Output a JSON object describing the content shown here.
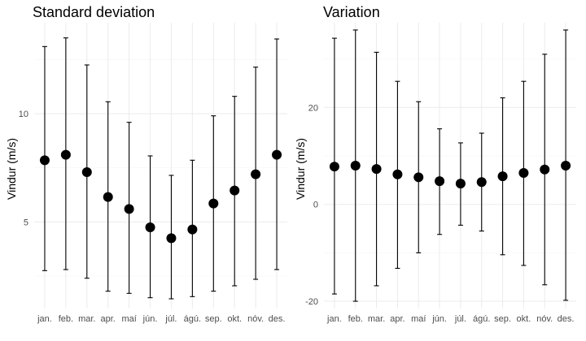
{
  "chart_data": [
    {
      "type": "scatter",
      "title": "Standard deviation",
      "xlabel": "",
      "ylabel": "Vindur (m/s)",
      "categories": [
        "jan.",
        "feb.",
        "mar.",
        "apr.",
        "maí",
        "jún.",
        "júl.",
        "ágú.",
        "sep.",
        "okt.",
        "nóv.",
        "des."
      ],
      "values": [
        7.85,
        8.1,
        7.3,
        6.15,
        5.6,
        4.75,
        4.25,
        4.65,
        5.85,
        6.45,
        7.2,
        8.1
      ],
      "lower": [
        2.75,
        2.8,
        2.4,
        1.8,
        1.7,
        1.5,
        1.45,
        1.55,
        1.8,
        2.05,
        2.35,
        2.8
      ],
      "upper": [
        13.1,
        13.5,
        12.25,
        10.55,
        9.6,
        8.05,
        7.15,
        7.85,
        9.9,
        10.8,
        12.15,
        13.45
      ],
      "ylim": [
        1.0,
        14.2
      ],
      "yticks": [
        5,
        10
      ],
      "grid": true
    },
    {
      "type": "scatter",
      "title": "Variation",
      "xlabel": "",
      "ylabel": "Vindur (m/s)",
      "categories": [
        "jan.",
        "feb.",
        "mar.",
        "apr.",
        "maí",
        "jún.",
        "júl.",
        "ágú.",
        "sep.",
        "okt.",
        "nóv.",
        "des."
      ],
      "values": [
        7.8,
        8.0,
        7.3,
        6.2,
        5.6,
        4.8,
        4.3,
        4.6,
        5.8,
        6.5,
        7.2,
        8.0
      ],
      "lower": [
        -18.5,
        -20.0,
        -16.8,
        -13.2,
        -10.0,
        -6.2,
        -4.3,
        -5.5,
        -10.4,
        -12.6,
        -16.6,
        -19.8
      ],
      "upper": [
        34.3,
        36.0,
        31.4,
        25.4,
        21.2,
        15.6,
        12.7,
        14.7,
        22.0,
        25.4,
        31.0,
        36.0
      ],
      "ylim": [
        -21.5,
        37.5
      ],
      "yticks": [
        -20,
        0,
        20
      ],
      "grid": true
    }
  ]
}
